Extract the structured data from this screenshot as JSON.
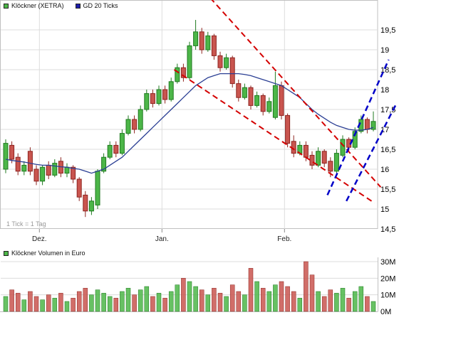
{
  "header": {
    "legend_price": [
      {
        "label": "Klöckner (XETRA)",
        "color": "#4cb648"
      },
      {
        "label": "GD 20 Ticks",
        "color": "#1c1caa"
      }
    ],
    "legend_volume": [
      {
        "label": "Klöckner Volumen in Euro",
        "color": "#4cb648"
      }
    ]
  },
  "footnote": "1 Tick = 1 Tag",
  "chart_data": {
    "type": "candlestick",
    "title": "Klöckner (XETRA)",
    "overlay_label": "GD 20 Ticks",
    "x_axis": {
      "tick_labels": [
        "Dez.",
        "Jan.",
        "Feb."
      ],
      "tick_indices": [
        5.5,
        25.5,
        45.5
      ],
      "note": "1 Tick = 1 Tag"
    },
    "y_axis": {
      "tick_labels": [
        "19,5",
        "19",
        "18,5",
        "18",
        "17,5",
        "17",
        "16,5",
        "16",
        "15,5",
        "15",
        "14,5"
      ],
      "tick_values": [
        19.5,
        19,
        18.5,
        18,
        17.5,
        17,
        16.5,
        16,
        15.5,
        15,
        14.5
      ],
      "range": [
        14.5,
        20.1
      ]
    },
    "candles_ohlc": [
      [
        16.0,
        16.75,
        15.9,
        16.65
      ],
      [
        16.6,
        16.7,
        16.15,
        16.25
      ],
      [
        16.3,
        16.4,
        15.85,
        15.95
      ],
      [
        15.95,
        16.2,
        15.85,
        16.1
      ],
      [
        16.45,
        16.55,
        15.85,
        15.95
      ],
      [
        16.0,
        16.1,
        15.6,
        15.7
      ],
      [
        15.7,
        16.1,
        15.6,
        16.05
      ],
      [
        16.1,
        16.2,
        15.75,
        15.85
      ],
      [
        15.85,
        16.25,
        15.8,
        16.15
      ],
      [
        16.2,
        16.3,
        15.8,
        15.9
      ],
      [
        15.9,
        16.15,
        15.8,
        16.05
      ],
      [
        16.05,
        16.1,
        15.65,
        15.75
      ],
      [
        15.75,
        15.8,
        15.2,
        15.3
      ],
      [
        15.35,
        15.45,
        14.8,
        14.95
      ],
      [
        14.95,
        15.3,
        14.85,
        15.2
      ],
      [
        15.1,
        16.0,
        15.0,
        15.95
      ],
      [
        15.95,
        16.4,
        15.9,
        16.3
      ],
      [
        16.3,
        16.7,
        16.25,
        16.6
      ],
      [
        16.6,
        16.7,
        16.3,
        16.4
      ],
      [
        16.4,
        17.0,
        16.35,
        16.9
      ],
      [
        16.9,
        17.35,
        16.85,
        17.25
      ],
      [
        17.25,
        17.35,
        16.9,
        17.0
      ],
      [
        17.0,
        17.6,
        16.95,
        17.5
      ],
      [
        17.5,
        18.0,
        17.45,
        17.9
      ],
      [
        17.9,
        18.0,
        17.55,
        17.65
      ],
      [
        17.65,
        18.1,
        17.6,
        18.0
      ],
      [
        18.0,
        18.1,
        17.65,
        17.75
      ],
      [
        17.75,
        18.3,
        17.7,
        18.2
      ],
      [
        18.2,
        18.65,
        18.15,
        18.55
      ],
      [
        18.55,
        18.65,
        18.2,
        18.3
      ],
      [
        18.3,
        19.2,
        18.25,
        19.1
      ],
      [
        19.1,
        19.75,
        19.0,
        19.45
      ],
      [
        19.45,
        19.55,
        18.9,
        19.0
      ],
      [
        19.0,
        19.45,
        18.95,
        19.35
      ],
      [
        19.35,
        19.4,
        18.75,
        18.85
      ],
      [
        18.85,
        18.95,
        18.45,
        18.55
      ],
      [
        18.55,
        18.9,
        18.5,
        18.8
      ],
      [
        18.8,
        18.85,
        18.05,
        18.15
      ],
      [
        18.15,
        18.25,
        17.7,
        17.8
      ],
      [
        17.8,
        18.15,
        17.75,
        18.05
      ],
      [
        18.05,
        18.1,
        17.5,
        17.6
      ],
      [
        17.6,
        17.95,
        17.55,
        17.85
      ],
      [
        17.85,
        17.9,
        17.35,
        17.45
      ],
      [
        17.45,
        17.8,
        17.4,
        17.7
      ],
      [
        17.3,
        18.45,
        17.25,
        18.1
      ],
      [
        18.1,
        18.2,
        17.25,
        17.35
      ],
      [
        17.35,
        17.4,
        16.55,
        16.65
      ],
      [
        16.7,
        16.85,
        16.3,
        16.4
      ],
      [
        16.4,
        16.7,
        16.35,
        16.6
      ],
      [
        16.6,
        16.7,
        16.2,
        16.3
      ],
      [
        16.35,
        16.45,
        16.0,
        16.1
      ],
      [
        16.1,
        16.55,
        16.05,
        16.45
      ],
      [
        16.45,
        16.5,
        16.05,
        16.15
      ],
      [
        16.2,
        16.3,
        15.8,
        15.95
      ],
      [
        15.95,
        16.5,
        15.9,
        16.4
      ],
      [
        16.35,
        16.85,
        16.3,
        16.75
      ],
      [
        16.75,
        16.8,
        16.45,
        16.55
      ],
      [
        16.55,
        17.05,
        16.5,
        16.95
      ],
      [
        16.95,
        17.35,
        16.9,
        17.25
      ],
      [
        17.25,
        17.3,
        16.9,
        17.0
      ],
      [
        17.0,
        17.45,
        16.95,
        17.2
      ]
    ],
    "gd20_values": [
      16.25,
      16.22,
      16.2,
      16.18,
      16.15,
      16.12,
      16.1,
      16.1,
      16.08,
      16.06,
      16.05,
      16.02,
      16.0,
      15.95,
      15.9,
      15.95,
      16.0,
      16.1,
      16.2,
      16.3,
      16.45,
      16.6,
      16.75,
      16.9,
      17.05,
      17.2,
      17.35,
      17.5,
      17.65,
      17.8,
      17.95,
      18.1,
      18.2,
      18.3,
      18.35,
      18.4,
      18.4,
      18.4,
      18.4,
      18.38,
      18.35,
      18.3,
      18.25,
      18.2,
      18.15,
      18.1,
      18.0,
      17.9,
      17.8,
      17.65,
      17.5,
      17.38,
      17.28,
      17.18,
      17.1,
      17.05,
      17.0,
      16.98,
      16.98,
      17.0,
      17.05
    ],
    "trendlines": [
      {
        "name": "down-channel-upper",
        "color": "#d40000",
        "width": 2,
        "dash": "8 5",
        "x1": 33.4,
        "p1": 20.3,
        "x2": 61.2,
        "p2": 15.55
      },
      {
        "name": "down-channel-lower",
        "color": "#d40000",
        "width": 2,
        "dash": "8 5",
        "x1": 27.5,
        "p1": 18.5,
        "x2": 60.2,
        "p2": 15.15
      },
      {
        "name": "up-channel-left",
        "color": "#0000c8",
        "width": 2.5,
        "dash": "8 5",
        "x1": 52.5,
        "p1": 15.35,
        "x2": 62.5,
        "p2": 18.75
      },
      {
        "name": "up-channel-right",
        "color": "#0000c8",
        "width": 2.5,
        "dash": "8 5",
        "x1": 55.6,
        "p1": 15.2,
        "x2": 63.6,
        "p2": 17.6
      }
    ],
    "volume": {
      "title": "Klöckner Volumen in Euro",
      "values_millions": [
        9,
        13,
        11,
        7,
        12,
        9,
        7,
        10,
        8,
        11,
        6,
        8,
        12,
        14,
        10,
        13,
        11,
        9,
        8,
        12,
        14,
        10,
        13,
        15,
        9,
        11,
        8,
        12,
        16,
        20,
        18,
        15,
        13,
        10,
        14,
        11,
        9,
        16,
        12,
        10,
        26,
        18,
        14,
        12,
        16,
        18,
        15,
        12,
        8,
        30,
        22,
        12,
        9,
        13,
        11,
        14,
        8,
        12,
        15,
        9,
        6
      ],
      "y_axis": {
        "tick_labels": [
          "30M",
          "20M",
          "10M",
          "0M"
        ],
        "tick_values": [
          30,
          20,
          10,
          0
        ],
        "range": [
          0,
          32
        ]
      }
    },
    "colors": {
      "up": "#4cb648",
      "up_border": "#1f7a1f",
      "down": "#c9554f",
      "down_border": "#8e2420",
      "ma_line": "#2b3f94",
      "trend_down": "#d40000",
      "trend_up": "#0000c8",
      "grid": "#dcdcdc",
      "frame": "#c0c0c0",
      "text": "#000000",
      "muted_text": "#999999"
    }
  }
}
